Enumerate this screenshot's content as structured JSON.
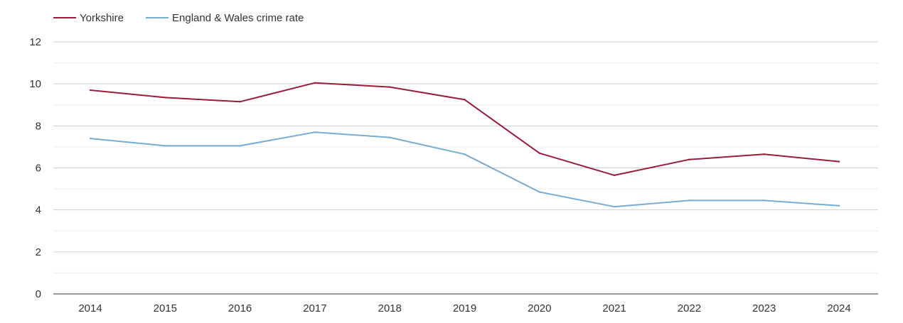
{
  "chart_data": {
    "type": "line",
    "title": "",
    "xlabel": "",
    "ylabel": "",
    "x": [
      "2014",
      "2015",
      "2016",
      "2017",
      "2018",
      "2019",
      "2020",
      "2021",
      "2022",
      "2023",
      "2024"
    ],
    "ylim": [
      0,
      12
    ],
    "y_ticks": [
      0,
      2,
      4,
      6,
      8,
      10,
      12
    ],
    "y_tick_labels": [
      "0",
      "2",
      "4",
      "6",
      "8",
      "10",
      "12"
    ],
    "minor_grid": [
      1,
      3,
      5,
      7,
      9,
      11
    ],
    "grid": true,
    "legend_position": "top-left",
    "series": [
      {
        "name": "Yorkshire",
        "color": "#9b1b3a",
        "values": [
          9.7,
          9.35,
          9.15,
          10.05,
          9.85,
          9.25,
          6.7,
          5.65,
          6.4,
          6.65,
          6.3
        ]
      },
      {
        "name": "England & Wales crime rate",
        "color": "#75add2",
        "values": [
          7.4,
          7.05,
          7.05,
          7.7,
          7.45,
          6.65,
          4.85,
          4.15,
          4.45,
          4.45,
          4.2
        ]
      }
    ]
  }
}
